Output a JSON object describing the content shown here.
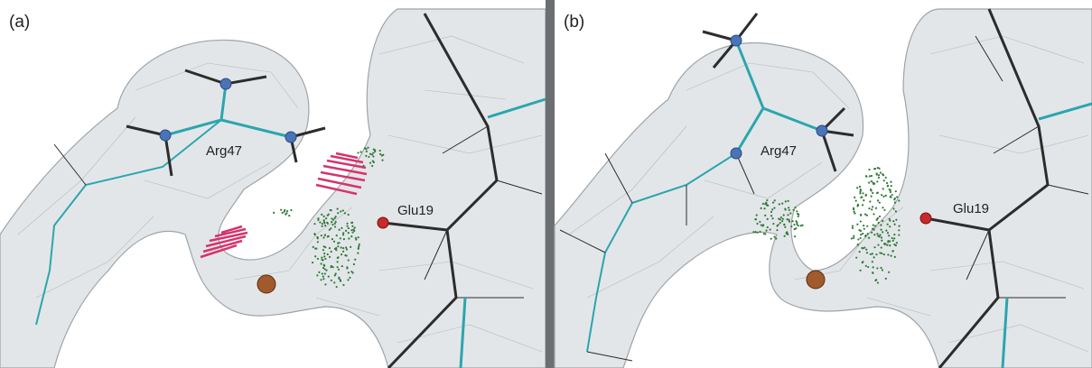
{
  "panels": [
    {
      "label": "(a)",
      "residues": [
        "Arg47",
        "Glu19"
      ]
    },
    {
      "label": "(b)",
      "residues": [
        "Arg47",
        "Glu19"
      ]
    }
  ]
}
